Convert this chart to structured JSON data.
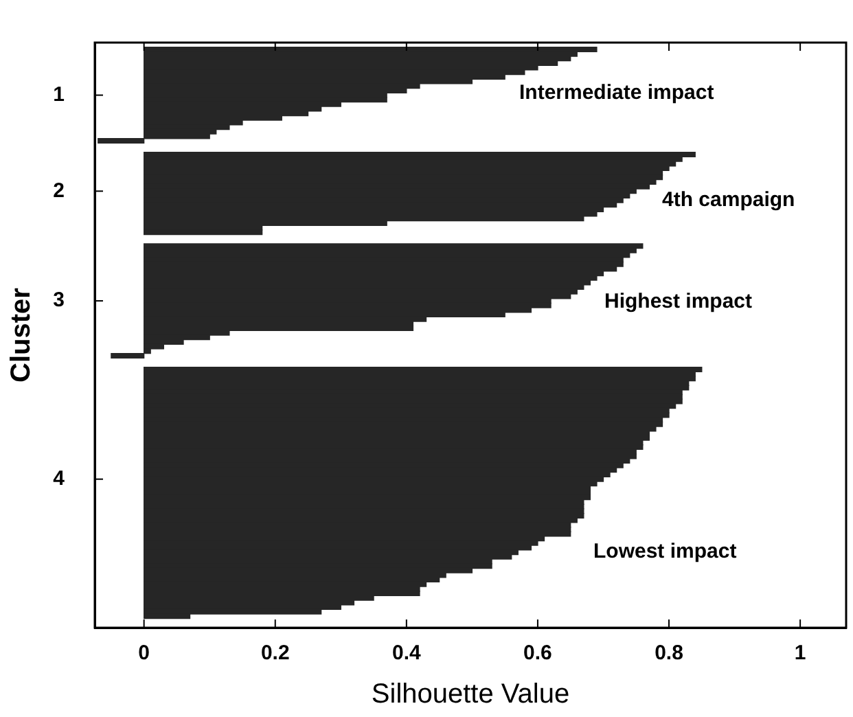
{
  "chart_data": {
    "type": "bar",
    "orientation": "horizontal",
    "xlabel": "Silhouette Value",
    "ylabel": "Cluster",
    "categories": [
      null,
      null,
      null,
      null,
      null,
      null,
      null,
      null,
      null,
      null,
      null,
      "1",
      null,
      null,
      null,
      null,
      null,
      null,
      null,
      null,
      null,
      null,
      null,
      null,
      null,
      null,
      null,
      null,
      null,
      null,
      null,
      null,
      "2",
      null,
      null,
      null,
      null,
      null,
      null,
      null,
      null,
      null,
      null,
      null,
      null,
      null,
      null,
      null,
      null,
      null,
      null,
      null,
      null,
      null,
      null,
      null,
      "3",
      null,
      null,
      null,
      null,
      null,
      null,
      null,
      null,
      null,
      null,
      null,
      null,
      null,
      null,
      null,
      null,
      null,
      null,
      null,
      null,
      null,
      null,
      null,
      null,
      null,
      null,
      null,
      null,
      null,
      null,
      null,
      null,
      null,
      null,
      null,
      null,
      null,
      null,
      "4",
      null,
      null,
      null,
      null,
      null,
      null,
      null,
      null,
      null,
      null,
      null,
      null,
      null,
      null,
      null,
      null,
      null,
      null,
      null,
      null,
      null,
      null,
      null,
      null,
      null,
      null,
      null,
      null,
      null,
      null,
      null,
      null
    ],
    "values": [
      null,
      0.69,
      0.66,
      0.65,
      0.63,
      0.6,
      0.58,
      0.55,
      0.5,
      0.42,
      0.4,
      0.37,
      0.37,
      0.3,
      0.27,
      0.25,
      0.21,
      0.15,
      0.13,
      0.11,
      0.1,
      -0.07,
      null,
      null,
      0.84,
      0.82,
      0.81,
      0.8,
      0.79,
      0.79,
      0.78,
      0.77,
      0.75,
      0.74,
      0.73,
      0.72,
      0.7,
      0.69,
      0.67,
      0.37,
      0.18,
      0.18,
      null,
      null,
      0.76,
      0.75,
      0.74,
      0.73,
      0.73,
      0.72,
      0.7,
      0.69,
      0.68,
      0.67,
      0.66,
      0.65,
      0.62,
      0.62,
      0.59,
      0.55,
      0.43,
      0.41,
      0.41,
      0.13,
      0.1,
      0.06,
      0.03,
      0.01,
      -0.05,
      null,
      null,
      0.85,
      0.84,
      0.84,
      0.83,
      0.83,
      0.82,
      0.82,
      0.82,
      0.81,
      0.8,
      0.8,
      0.79,
      0.79,
      0.78,
      0.77,
      0.77,
      0.76,
      0.76,
      0.75,
      0.75,
      0.74,
      0.73,
      0.72,
      0.71,
      0.7,
      0.69,
      0.68,
      0.68,
      0.68,
      0.67,
      0.67,
      0.67,
      0.67,
      0.66,
      0.65,
      0.65,
      0.65,
      0.61,
      0.6,
      0.59,
      0.57,
      0.56,
      0.53,
      0.53,
      0.5,
      0.46,
      0.45,
      0.43,
      0.42,
      0.42,
      0.35,
      0.32,
      0.3,
      0.27,
      0.07,
      null,
      null
    ],
    "color": "#262626",
    "xlim": [
      -0.075,
      1.07
    ],
    "xticks": [
      0,
      0.2,
      0.4,
      0.6,
      0.8,
      1
    ],
    "annotations": [
      "Intermediate impact",
      "4th campaign",
      "Highest impact",
      "Lowest impact"
    ]
  }
}
